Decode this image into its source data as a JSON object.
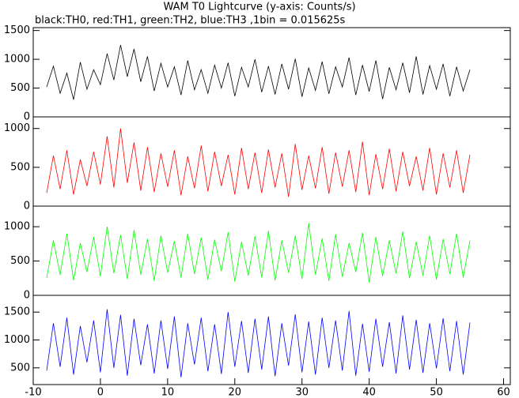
{
  "chart_data": [
    {
      "type": "line",
      "title": "WAM T0 Lightcurve (y-axis: Counts/s)",
      "subtitle": "black:TH0, red:TH1, green:TH2, blue:TH3 ,1bin = 0.015625s",
      "color": "#000000",
      "xlim": [
        -10,
        61
      ],
      "ylim": [
        0,
        1550
      ],
      "yticks": [
        0,
        500,
        1000,
        1500
      ],
      "x": [
        -8,
        -7,
        -6,
        -5,
        -4,
        -3,
        -2,
        -1,
        0,
        1,
        2,
        3,
        4,
        5,
        6,
        7,
        8,
        9,
        10,
        11,
        12,
        13,
        14,
        15,
        16,
        17,
        18,
        19,
        20,
        21,
        22,
        23,
        24,
        25,
        26,
        27,
        28,
        29,
        30,
        31,
        32,
        33,
        34,
        35,
        36,
        37,
        38,
        39,
        40,
        41,
        42,
        43,
        44,
        45,
        46,
        47,
        48,
        49,
        50,
        51,
        52,
        53,
        54,
        55
      ],
      "values": [
        520,
        880,
        410,
        760,
        300,
        950,
        480,
        820,
        560,
        1100,
        640,
        1250,
        700,
        1180,
        610,
        1050,
        450,
        930,
        520,
        870,
        380,
        980,
        470,
        820,
        410,
        900,
        500,
        940,
        360,
        860,
        520,
        1000,
        430,
        880,
        390,
        920,
        480,
        1010,
        350,
        850,
        460,
        960,
        400,
        870,
        520,
        1030,
        380,
        900,
        440,
        980,
        310,
        860,
        470,
        940,
        420,
        1050,
        390,
        890,
        480,
        920,
        360,
        870,
        450,
        820
      ]
    },
    {
      "type": "line",
      "color": "#ff0000",
      "xlim": [
        -10,
        61
      ],
      "ylim": [
        0,
        1150
      ],
      "yticks": [
        0,
        500,
        1000
      ],
      "x": [
        -8,
        -7,
        -6,
        -5,
        -4,
        -3,
        -2,
        -1,
        0,
        1,
        2,
        3,
        4,
        5,
        6,
        7,
        8,
        9,
        10,
        11,
        12,
        13,
        14,
        15,
        16,
        17,
        18,
        19,
        20,
        21,
        22,
        23,
        24,
        25,
        26,
        27,
        28,
        29,
        30,
        31,
        32,
        33,
        34,
        35,
        36,
        37,
        38,
        39,
        40,
        41,
        42,
        43,
        44,
        45,
        46,
        47,
        48,
        49,
        50,
        51,
        52,
        53,
        54,
        55
      ],
      "values": [
        170,
        650,
        220,
        720,
        150,
        600,
        260,
        700,
        280,
        900,
        240,
        1000,
        300,
        820,
        200,
        760,
        180,
        680,
        250,
        720,
        140,
        640,
        230,
        780,
        190,
        700,
        260,
        660,
        150,
        750,
        220,
        690,
        170,
        730,
        240,
        680,
        120,
        800,
        210,
        650,
        230,
        760,
        160,
        690,
        250,
        720,
        180,
        830,
        140,
        670,
        220,
        740,
        190,
        700,
        260,
        640,
        200,
        750,
        150,
        680,
        240,
        720,
        170,
        660
      ]
    },
    {
      "type": "line",
      "color": "#00ff00",
      "xlim": [
        -10,
        61
      ],
      "ylim": [
        0,
        1300
      ],
      "yticks": [
        0,
        500,
        1000
      ],
      "x": [
        -8,
        -7,
        -6,
        -5,
        -4,
        -3,
        -2,
        -1,
        0,
        1,
        2,
        3,
        4,
        5,
        6,
        7,
        8,
        9,
        10,
        11,
        12,
        13,
        14,
        15,
        16,
        17,
        18,
        19,
        20,
        21,
        22,
        23,
        24,
        25,
        26,
        27,
        28,
        29,
        30,
        31,
        32,
        33,
        34,
        35,
        36,
        37,
        38,
        39,
        40,
        41,
        42,
        43,
        44,
        45,
        46,
        47,
        48,
        49,
        50,
        51,
        52,
        53,
        54,
        55
      ],
      "values": [
        250,
        800,
        300,
        900,
        220,
        760,
        340,
        850,
        280,
        1000,
        320,
        880,
        240,
        950,
        300,
        820,
        210,
        870,
        330,
        790,
        260,
        900,
        310,
        840,
        230,
        810,
        350,
        920,
        200,
        780,
        290,
        860,
        260,
        940,
        220,
        800,
        330,
        870,
        240,
        1050,
        300,
        830,
        210,
        890,
        270,
        760,
        340,
        910,
        190,
        850,
        280,
        800,
        320,
        930,
        250,
        780,
        290,
        870,
        230,
        820,
        310,
        900,
        260,
        800
      ]
    },
    {
      "type": "line",
      "color": "#0000ff",
      "xlim": [
        -10,
        61
      ],
      "ylim": [
        200,
        1800
      ],
      "yticks": [
        500,
        1000,
        1500
      ],
      "xticks": [
        -10,
        0,
        10,
        20,
        30,
        40,
        50,
        60
      ],
      "x": [
        -8,
        -7,
        -6,
        -5,
        -4,
        -3,
        -2,
        -1,
        0,
        1,
        2,
        3,
        4,
        5,
        6,
        7,
        8,
        9,
        10,
        11,
        12,
        13,
        14,
        15,
        16,
        17,
        18,
        19,
        20,
        21,
        22,
        23,
        24,
        25,
        26,
        27,
        28,
        29,
        30,
        31,
        32,
        33,
        34,
        35,
        36,
        37,
        38,
        39,
        40,
        41,
        42,
        43,
        44,
        45,
        46,
        47,
        48,
        49,
        50,
        51,
        52,
        53,
        54,
        55
      ],
      "values": [
        450,
        1300,
        520,
        1400,
        380,
        1250,
        600,
        1350,
        420,
        1550,
        500,
        1450,
        360,
        1380,
        550,
        1280,
        400,
        1350,
        480,
        1420,
        330,
        1300,
        560,
        1400,
        440,
        1280,
        390,
        1500,
        520,
        1340,
        410,
        1380,
        470,
        1420,
        350,
        1300,
        540,
        1460,
        420,
        1330,
        380,
        1400,
        500,
        1350,
        450,
        1520,
        360,
        1290,
        430,
        1380,
        520,
        1320,
        400,
        1440,
        470,
        1360,
        410,
        1300,
        490,
        1390,
        440,
        1340,
        380,
        1310
      ]
    }
  ]
}
